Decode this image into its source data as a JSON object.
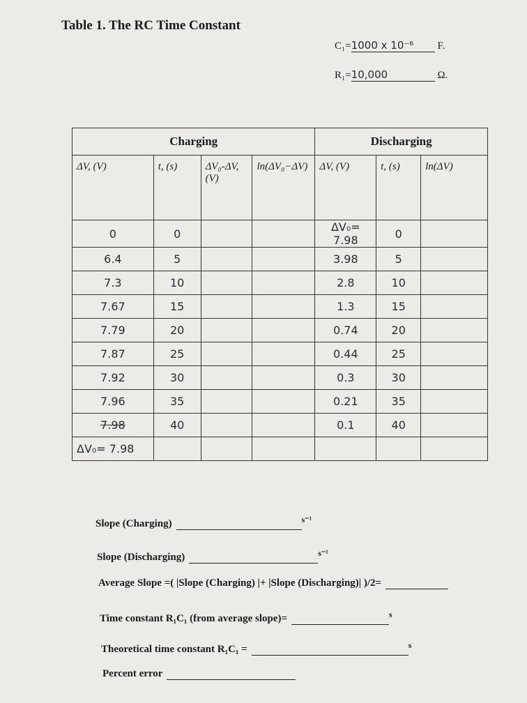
{
  "header": {
    "title": "Table 1. The RC Time Constant"
  },
  "constants": [
    {
      "label": "C₁=",
      "value": "1000 x 10⁻⁶",
      "unit": "F."
    },
    {
      "label": "R₁=",
      "value": "10,000",
      "unit": "Ω."
    }
  ],
  "table": {
    "groups": [
      "Charging",
      "Discharging"
    ],
    "columns": [
      "ΔV, (V)",
      "t, (s)",
      "ΔV₀-ΔV, (V)",
      "ln(ΔV₀−ΔV)",
      "ΔV, (V)",
      "t, (s)",
      "ln(ΔV)"
    ],
    "rows": [
      [
        "0",
        "0",
        "ΔV₀= 7.98",
        "0"
      ],
      [
        "6.4",
        "5",
        "3.98",
        "5"
      ],
      [
        "7.3",
        "10",
        "2.8",
        "10"
      ],
      [
        "7.67",
        "15",
        "1.3",
        "15"
      ],
      [
        "7.79",
        "20",
        "0.74",
        "20"
      ],
      [
        "7.87",
        "25",
        "0.44",
        "25"
      ],
      [
        "7.92",
        "30",
        "0.3",
        "30"
      ],
      [
        "7.96",
        "35",
        "0.21",
        "35"
      ],
      [
        "7.98",
        "40",
        "0.1",
        "40"
      ]
    ],
    "final_row": "ΔV₀= 7.98"
  },
  "questions": [
    {
      "label": "Slope (Charging)",
      "unit": "s⁻¹"
    },
    {
      "label": "Slope (Discharging)",
      "unit": "s⁻¹"
    },
    {
      "label": "Average Slope =( |Slope (Charging) |+ |Slope (Discharging)| )/2="
    },
    {
      "label": "Time constant R₁C₁  (from average slope)=",
      "unit": "s"
    },
    {
      "label": "Theoretical time constant R₁C₁  =",
      "unit": "s"
    },
    {
      "label": "Percent error"
    }
  ]
}
